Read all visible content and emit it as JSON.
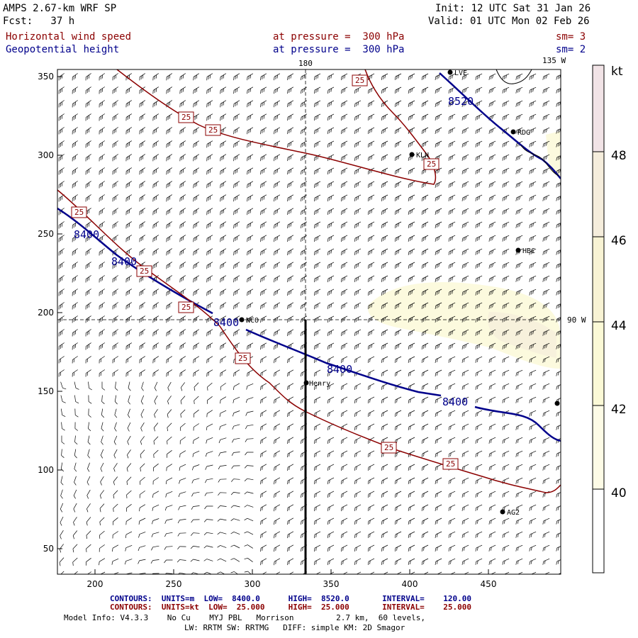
{
  "header": {
    "model": "AMPS 2.67-km WRF SP",
    "fcst": "Fcst:   37 h",
    "init": "Init: 12 UTC Sat 31 Jan 26",
    "valid": "Valid: 01 UTC Mon 02 Feb 26",
    "field1": "Horizontal wind speed",
    "field1_level": "at pressure =  300 hPa",
    "field1_sm": "sm= 3",
    "field2": "Geopotential height",
    "field2_level": "at pressure =  300 hPa",
    "field2_sm": "sm= 2"
  },
  "map": {
    "lon_labels": [
      "180",
      "135 W",
      "90 W"
    ],
    "y_ticks": [
      "350",
      "300",
      "250",
      "200",
      "150",
      "100",
      "50"
    ],
    "x_ticks": [
      "200",
      "250",
      "300",
      "350",
      "400",
      "450"
    ],
    "stations": [
      "KLN",
      "RDG",
      "HBC",
      "NCO",
      "Henry",
      "AG2",
      "LVE"
    ],
    "height_contour_labels": [
      "8520",
      "8400",
      "8400",
      "8400",
      "8400",
      "8400"
    ],
    "wind_contour_label": "25"
  },
  "colorbar": {
    "unit": "kt",
    "labels": [
      "48",
      "46",
      "44",
      "42",
      "40"
    ],
    "colors": [
      "#f1e3e6",
      "#f5eddc",
      "#f8f3d4",
      "#fbf9d6",
      "#fdfbe6",
      "#ffffff"
    ]
  },
  "footer": {
    "line1": "CONTOURS:  UNITS=m  LOW=  8400.0      HIGH=  8520.0       INTERVAL=    120.00",
    "line2": "CONTOURS:  UNITS=kt  LOW=  25.000     HIGH=  25.000       INTERVAL=    25.000",
    "line3": "Model Info: V4.3.3    No Cu    MYJ PBL   Morrison         2.7 km,  60 levels,",
    "line4": "LW: RRTM SW: RRTMG   DIFF: simple KM: 2D Smagor"
  },
  "colors": {
    "height_contour": "#00008b",
    "wind_contour": "#8b0000",
    "barb": "#000000"
  }
}
